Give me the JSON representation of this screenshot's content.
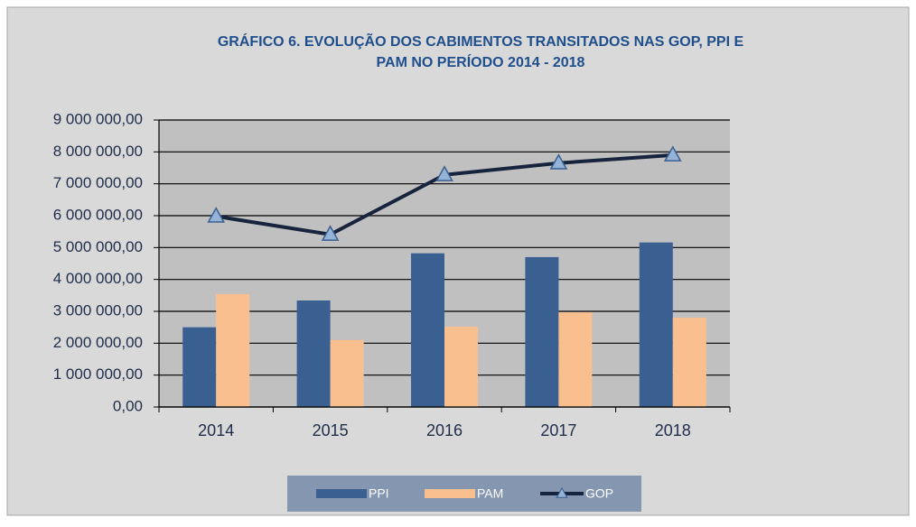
{
  "chart_data": {
    "type": "bar",
    "title": [
      "GRÁFICO 6. EVOLUÇÃO DOS CABIMENTOS TRANSITADOS NAS GOP, PPI E",
      "PAM NO PERÍODO  2014 - 2018"
    ],
    "categories": [
      "2014",
      "2015",
      "2016",
      "2017",
      "2018"
    ],
    "series": [
      {
        "name": "PPI",
        "type": "bar",
        "color": "#3a5f91",
        "values": [
          2500000,
          3340000,
          4820000,
          4700000,
          5160000
        ]
      },
      {
        "name": "PAM",
        "type": "bar",
        "color": "#f9bf8f",
        "values": [
          3540000,
          2100000,
          2520000,
          2970000,
          2800000
        ]
      },
      {
        "name": "GOP",
        "type": "line",
        "color": "#17243d",
        "marker_color": "#95b3d7",
        "values": [
          5980000,
          5410000,
          7280000,
          7650000,
          7900000
        ]
      }
    ],
    "ylim": [
      0,
      9000000
    ],
    "yticks": [
      {
        "value": 0,
        "label": "0,00"
      },
      {
        "value": 1000000,
        "label": "1 000 000,00"
      },
      {
        "value": 2000000,
        "label": "2 000 000,00"
      },
      {
        "value": 3000000,
        "label": "3 000 000,00"
      },
      {
        "value": 4000000,
        "label": "4 000 000,00"
      },
      {
        "value": 5000000,
        "label": "5 000 000,00"
      },
      {
        "value": 6000000,
        "label": "6 000 000,00"
      },
      {
        "value": 7000000,
        "label": "7 000 000,00"
      },
      {
        "value": 8000000,
        "label": "8 000 000,00"
      },
      {
        "value": 9000000,
        "label": "9 000 000,00"
      }
    ],
    "grid": true,
    "legend": "bottom"
  }
}
